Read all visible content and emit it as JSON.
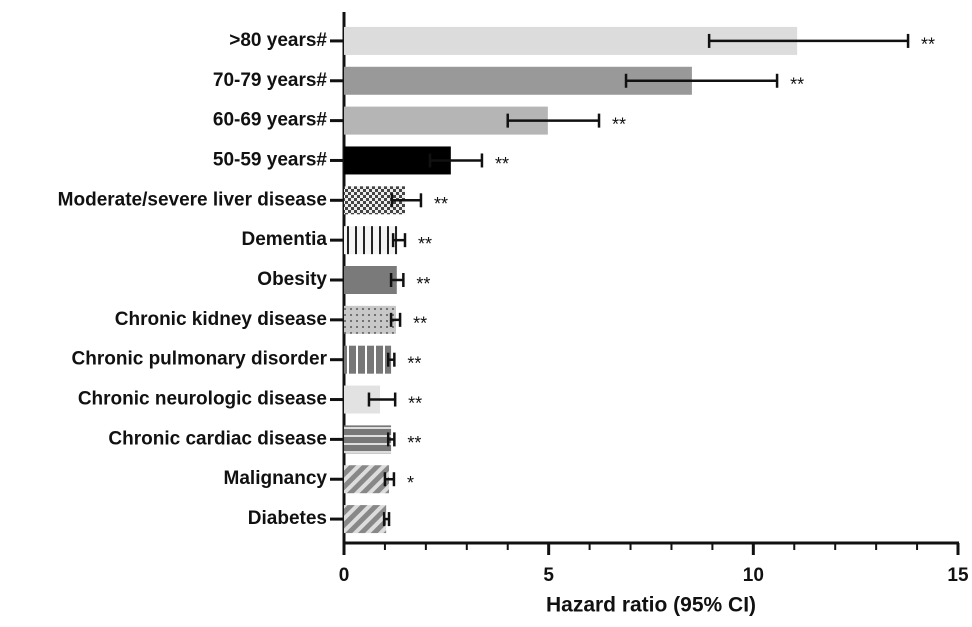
{
  "chart_data": {
    "type": "hbar_ci",
    "x_label": "Hazard ratio (95% CI)",
    "categories": [
      ">80 years#",
      "70-79 years#",
      "60-69 years#",
      "50-59 years#",
      "Moderate/severe liver disease",
      "Dementia",
      "Obesity",
      "Chronic kidney disease",
      "Chronic pulmonary disorder",
      "Chronic neurologic disease",
      "Chronic cardiac disease",
      "Malignancy",
      "Diabetes"
    ],
    "values": [
      11.07,
      8.5,
      4.98,
      2.61,
      1.49,
      1.32,
      1.29,
      1.27,
      1.15,
      0.88,
      1.15,
      1.1,
      1.03
    ],
    "ci_low": [
      8.92,
      6.89,
      4.0,
      2.1,
      1.17,
      1.2,
      1.15,
      1.15,
      1.08,
      0.61,
      1.08,
      1.0,
      0.98
    ],
    "ci_high": [
      13.78,
      10.58,
      6.23,
      3.37,
      1.88,
      1.49,
      1.45,
      1.37,
      1.23,
      1.25,
      1.23,
      1.22,
      1.1
    ],
    "annotations": [
      "**",
      "**",
      "**",
      "**",
      "**",
      "**",
      "**",
      "**",
      "**",
      "**",
      "**",
      "*",
      null
    ],
    "fills": [
      "#dcdcdc",
      "#999999",
      "#b5b5b5",
      "#000000",
      "checker",
      "vlines",
      "#7a7a7a",
      "dots",
      "vstripes",
      "#e2e2e2",
      "hlines",
      "diag",
      "diag"
    ],
    "xlim": [
      0,
      15
    ],
    "xticks": [
      0,
      5,
      10,
      15
    ],
    "xminorticks": [
      1,
      2,
      3,
      4,
      6,
      7,
      8,
      9,
      11,
      12,
      13,
      14
    ]
  }
}
